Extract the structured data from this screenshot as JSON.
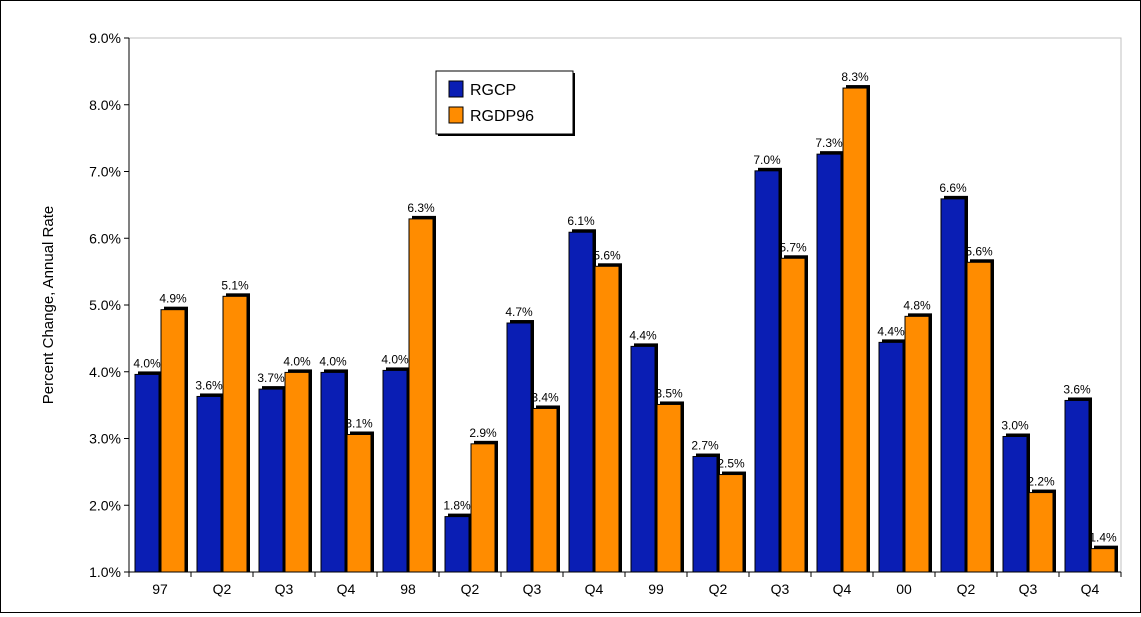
{
  "chart_data": {
    "type": "bar",
    "ylabel": "Percent Change, Annual Rate",
    "xlabel": "",
    "ylim": [
      1.0,
      9.0
    ],
    "y_ticks": [
      "1.0%",
      "2.0%",
      "3.0%",
      "4.0%",
      "5.0%",
      "6.0%",
      "7.0%",
      "8.0%",
      "9.0%"
    ],
    "grid": false,
    "legend_position": "top-center",
    "categories": [
      "97",
      "Q2",
      "Q3",
      "Q4",
      "98",
      "Q2",
      "Q3",
      "Q4",
      "99",
      "Q2",
      "Q3",
      "Q4",
      "00",
      "Q2",
      "Q3",
      "Q4"
    ],
    "series": [
      {
        "name": "RGCP",
        "color": "#0a1eb4",
        "values": [
          3.96,
          3.63,
          3.74,
          3.99,
          4.02,
          1.83,
          4.73,
          6.09,
          4.38,
          2.73,
          7.01,
          7.26,
          4.44,
          6.59,
          3.03,
          3.57
        ],
        "labels": [
          "4.0%",
          "3.6%",
          "3.7%",
          "4.0%",
          "4.0%",
          "1.8%",
          "4.7%",
          "6.1%",
          "4.4%",
          "2.7%",
          "7.0%",
          "7.3%",
          "4.4%",
          "6.6%",
          "3.0%",
          "3.6%"
        ]
      },
      {
        "name": "RGDP96",
        "color": "#ff8c00",
        "values": [
          4.93,
          5.13,
          3.99,
          3.06,
          6.29,
          2.92,
          3.45,
          5.58,
          3.51,
          2.46,
          5.7,
          8.25,
          4.83,
          5.64,
          2.19,
          1.35
        ],
        "labels": [
          "4.9%",
          "5.1%",
          "4.0%",
          "3.1%",
          "6.3%",
          "2.9%",
          "3.4%",
          "5.6%",
          "3.5%",
          "2.5%",
          "5.7%",
          "8.3%",
          "4.8%",
          "5.6%",
          "2.2%",
          "1.4%"
        ]
      }
    ]
  }
}
